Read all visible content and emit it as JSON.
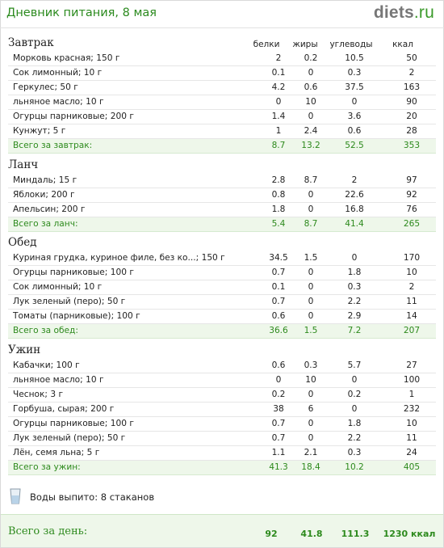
{
  "header": {
    "title": "Дневник питания, 8 мая",
    "brand_main": "diets",
    "brand_tld": ".ru"
  },
  "columns": {
    "protein": "белки",
    "fat": "жиры",
    "carbs": "углеводы",
    "kcal": "ккал"
  },
  "meals": [
    {
      "title": "Завтрак",
      "items": [
        {
          "name": "Морковь красная; 150 г",
          "b": "2",
          "f": "0.2",
          "c": "10.5",
          "k": "50"
        },
        {
          "name": "Сок лимонный; 10 г",
          "b": "0.1",
          "f": "0",
          "c": "0.3",
          "k": "2"
        },
        {
          "name": "Геркулес; 50 г",
          "b": "4.2",
          "f": "0.6",
          "c": "37.5",
          "k": "163"
        },
        {
          "name": "льняное масло; 10 г",
          "b": "0",
          "f": "10",
          "c": "0",
          "k": "90"
        },
        {
          "name": "Огурцы парниковые; 200 г",
          "b": "1.4",
          "f": "0",
          "c": "3.6",
          "k": "20"
        },
        {
          "name": "Кунжут; 5 г",
          "b": "1",
          "f": "2.4",
          "c": "0.6",
          "k": "28"
        }
      ],
      "total": {
        "label": "Всего за завтрак:",
        "b": "8.7",
        "f": "13.2",
        "c": "52.5",
        "k": "353"
      }
    },
    {
      "title": "Ланч",
      "items": [
        {
          "name": "Миндаль; 15 г",
          "b": "2.8",
          "f": "8.7",
          "c": "2",
          "k": "97"
        },
        {
          "name": "Яблоки; 200 г",
          "b": "0.8",
          "f": "0",
          "c": "22.6",
          "k": "92"
        },
        {
          "name": "Апельсин; 200 г",
          "b": "1.8",
          "f": "0",
          "c": "16.8",
          "k": "76"
        }
      ],
      "total": {
        "label": "Всего за ланч:",
        "b": "5.4",
        "f": "8.7",
        "c": "41.4",
        "k": "265"
      }
    },
    {
      "title": "Обед",
      "items": [
        {
          "name": "Куриная грудка, куриное филе, без ко...; 150 г",
          "b": "34.5",
          "f": "1.5",
          "c": "0",
          "k": "170"
        },
        {
          "name": "Огурцы парниковые; 100 г",
          "b": "0.7",
          "f": "0",
          "c": "1.8",
          "k": "10"
        },
        {
          "name": "Сок лимонный; 10 г",
          "b": "0.1",
          "f": "0",
          "c": "0.3",
          "k": "2"
        },
        {
          "name": "Лук зеленый (перо); 50 г",
          "b": "0.7",
          "f": "0",
          "c": "2.2",
          "k": "11"
        },
        {
          "name": "Томаты (парниковые); 100 г",
          "b": "0.6",
          "f": "0",
          "c": "2.9",
          "k": "14"
        }
      ],
      "total": {
        "label": "Всего за обед:",
        "b": "36.6",
        "f": "1.5",
        "c": "7.2",
        "k": "207"
      }
    },
    {
      "title": "Ужин",
      "items": [
        {
          "name": "Кабачки; 100 г",
          "b": "0.6",
          "f": "0.3",
          "c": "5.7",
          "k": "27"
        },
        {
          "name": "льняное масло; 10 г",
          "b": "0",
          "f": "10",
          "c": "0",
          "k": "100"
        },
        {
          "name": "Чеснок; 3 г",
          "b": "0.2",
          "f": "0",
          "c": "0.2",
          "k": "1"
        },
        {
          "name": "Горбуша, сырая; 200 г",
          "b": "38",
          "f": "6",
          "c": "0",
          "k": "232"
        },
        {
          "name": "Огурцы парниковые; 100 г",
          "b": "0.7",
          "f": "0",
          "c": "1.8",
          "k": "10"
        },
        {
          "name": "Лук зеленый (перо); 50 г",
          "b": "0.7",
          "f": "0",
          "c": "2.2",
          "k": "11"
        },
        {
          "name": "Лён, семя льна; 5 г",
          "b": "1.1",
          "f": "2.1",
          "c": "0.3",
          "k": "24"
        }
      ],
      "total": {
        "label": "Всего за ужин:",
        "b": "41.3",
        "f": "18.4",
        "c": "10.2",
        "k": "405"
      }
    }
  ],
  "water": {
    "label": "Воды выпито: 8 стаканов",
    "icon": "glass-icon"
  },
  "day_total": {
    "label": "Всего за день:",
    "b": "92",
    "f": "41.8",
    "c": "111.3",
    "k": "1230 ккал"
  },
  "colors": {
    "accent": "#2d8a1d",
    "total_bg": "#eef7ea",
    "row_border": "#e6e6e6"
  }
}
